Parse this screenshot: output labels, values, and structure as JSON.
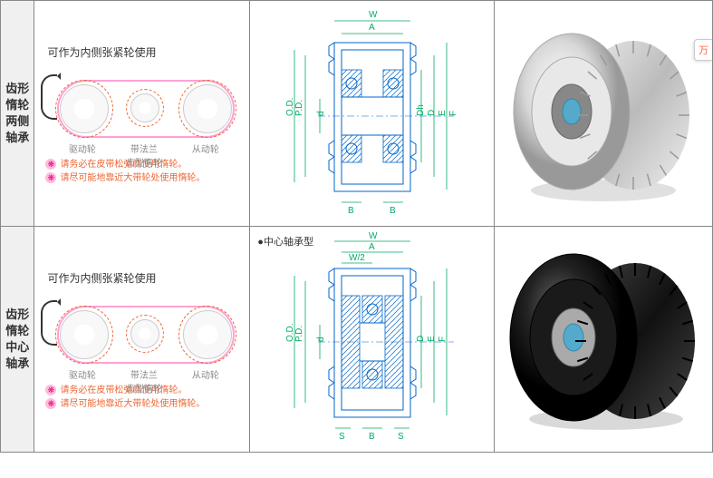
{
  "rows": [
    {
      "label_chars": [
        "齿形",
        "惰轮",
        "两侧",
        "轴承"
      ],
      "diagram": {
        "title": "可作为内侧张紧轮使用",
        "gear_labels": [
          "驱动轮",
          "带法兰\n齿型惰轮",
          "从动轮"
        ],
        "notes": [
          "请务必在皮带松弛侧使用惰轮。",
          "请尽可能地靠近大带轮处使用惰轮。"
        ]
      },
      "tech": {
        "title": "",
        "top_labels": [
          "W",
          "A"
        ],
        "side_labels": [
          "P.D.",
          "O.D.",
          "d",
          "Dh",
          "D",
          "E",
          "F"
        ],
        "bottom_labels": [
          "B",
          "B"
        ]
      },
      "photo": {
        "kind": "silver"
      }
    },
    {
      "label_chars": [
        "齿形",
        "惰轮",
        "中心",
        "轴承"
      ],
      "diagram": {
        "title": "可作为内侧张紧轮使用",
        "gear_labels": [
          "驱动轮",
          "带法兰\n齿型惰轮",
          "从动轮"
        ],
        "notes": [
          "请务必在皮带松弛侧使用惰轮。",
          "请尽可能地靠近大带轮处使用惰轮。"
        ]
      },
      "tech": {
        "title": "●中心轴承型",
        "top_labels": [
          "W",
          "A",
          "W/2"
        ],
        "side_labels": [
          "P.D.",
          "O.D.",
          "d",
          "D",
          "E",
          "F"
        ],
        "bottom_labels": [
          "S",
          "B",
          "S"
        ]
      },
      "photo": {
        "kind": "black"
      }
    }
  ],
  "side_button": "万"
}
